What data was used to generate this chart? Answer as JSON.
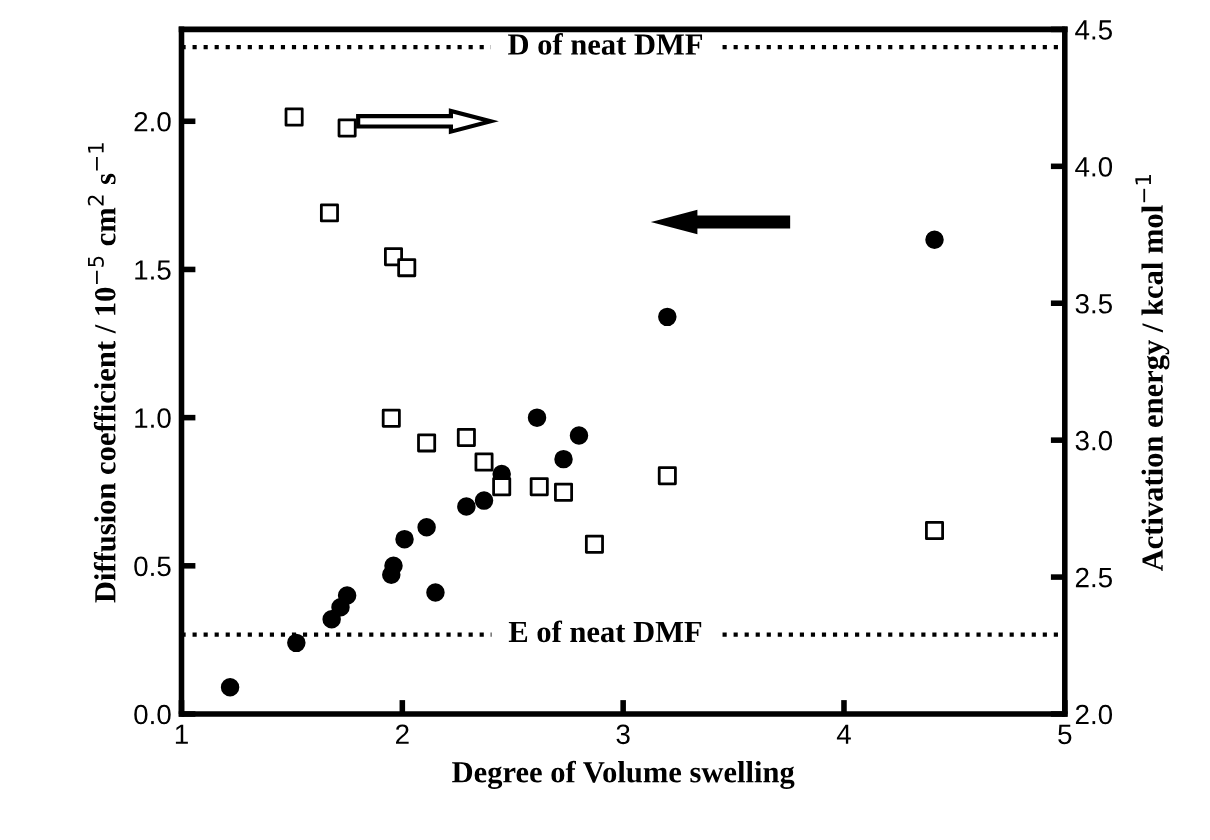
{
  "chart_data": {
    "type": "scatter",
    "xlabel": "Degree of Volume swelling",
    "ylabel": "Diffusion coefficient / 10$^{−5}$ cm$^{2}$ s$^{−1}$",
    "y2label": "Activation energy / kcal mol$^{−1}$",
    "xlim": [
      1,
      5
    ],
    "xticks": [
      1,
      2,
      3,
      4,
      5
    ],
    "ylim": [
      0,
      2.31
    ],
    "yticks": [
      {
        "value": 0,
        "label": "0.0"
      },
      {
        "value": 0.5,
        "label": "0.5"
      },
      {
        "value": 1,
        "label": "1.0"
      },
      {
        "value": 1.5,
        "label": "1.5"
      },
      {
        "value": 2,
        "label": "2.0"
      }
    ],
    "y2lim": [
      2,
      4.5
    ],
    "y2ticks": [
      {
        "value": 2,
        "label": "2.0"
      },
      {
        "value": 2.5,
        "label": "2.5"
      },
      {
        "value": 3,
        "label": "3.0"
      },
      {
        "value": 3.5,
        "label": "3.5"
      },
      {
        "value": 4,
        "label": "4.0"
      },
      {
        "value": 4.5,
        "label": "4.5"
      }
    ],
    "grid": false,
    "legend": false,
    "series": [
      {
        "color": "#000000",
        "marker": "circle",
        "x": [
          1.22,
          1.52,
          1.68,
          1.72,
          1.75,
          1.95,
          1.96,
          2.01,
          2.11,
          2.15,
          2.29,
          2.37,
          2.45,
          2.61,
          2.73,
          2.8,
          3.2,
          4.41
        ],
        "values": [
          0.09,
          0.24,
          0.32,
          0.36,
          0.4,
          0.47,
          0.5,
          0.59,
          0.63,
          0.41,
          0.7,
          0.72,
          0.81,
          1.0,
          0.86,
          0.94,
          1.34,
          1.6
        ]
      },
      {
        "color": "#000000",
        "marker": "square",
        "axis": "y2",
        "x": [
          1.51,
          1.75,
          1.67,
          1.96,
          2.02,
          1.95,
          2.11,
          2.29,
          2.37,
          2.45,
          2.62,
          2.73,
          2.87,
          3.2,
          4.41
        ],
        "values": [
          4.18,
          4.14,
          3.83,
          3.67,
          3.63,
          3.08,
          2.99,
          3.01,
          2.92,
          2.83,
          2.83,
          2.81,
          2.62,
          2.87,
          2.67
        ]
      }
    ],
    "ref_lines": [
      {
        "axis": "y",
        "value": 2.25,
        "label": "D of neat DMF",
        "line_style": "dotted",
        "color": "#000000"
      },
      {
        "axis": "y2",
        "value": 2.29,
        "label": "E of neat DMF",
        "line_style": "dotted",
        "color": "#000000"
      }
    ]
  }
}
